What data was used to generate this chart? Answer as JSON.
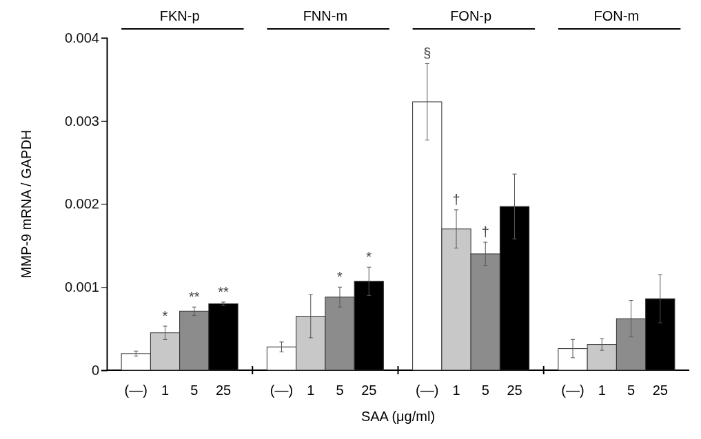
{
  "chart_data": {
    "type": "bar",
    "xlabel": "SAA (μg/ml)",
    "ylabel": "MMP-9 mRNA / GAPDH",
    "categories": [
      "FKN-p",
      "FNN-m",
      "FON-p",
      "FON-m"
    ],
    "ylim": [
      0,
      0.004
    ],
    "yticks": [
      0,
      0.001,
      0.002,
      0.003,
      0.004
    ],
    "series": [
      {
        "name": "(—)",
        "color": "#ffffff",
        "values": [
          0.0002,
          0.00028,
          0.00323,
          0.00026
        ],
        "errors": [
          3e-05,
          6e-05,
          0.00046,
          0.00011
        ],
        "value_labels": [
          null,
          null,
          "§",
          null
        ]
      },
      {
        "name": "1",
        "color": "#c8c8c8",
        "values": [
          0.00045,
          0.00065,
          0.0017,
          0.00031
        ],
        "errors": [
          8e-05,
          0.00026,
          0.00023,
          7e-05
        ],
        "value_labels": [
          "*",
          null,
          "†",
          null
        ]
      },
      {
        "name": "5",
        "color": "#8c8c8c",
        "values": [
          0.00071,
          0.00088,
          0.0014,
          0.00062
        ],
        "errors": [
          5e-05,
          0.00012,
          0.00014,
          0.00022
        ],
        "value_labels": [
          "**",
          "*",
          "†",
          null
        ]
      },
      {
        "name": "25",
        "color": "#000000",
        "values": [
          0.0008,
          0.00107,
          0.00197,
          0.00086
        ],
        "errors": [
          2e-05,
          0.00017,
          0.00039,
          0.00029
        ],
        "value_labels": [
          "**",
          "*",
          null,
          null
        ]
      }
    ]
  }
}
